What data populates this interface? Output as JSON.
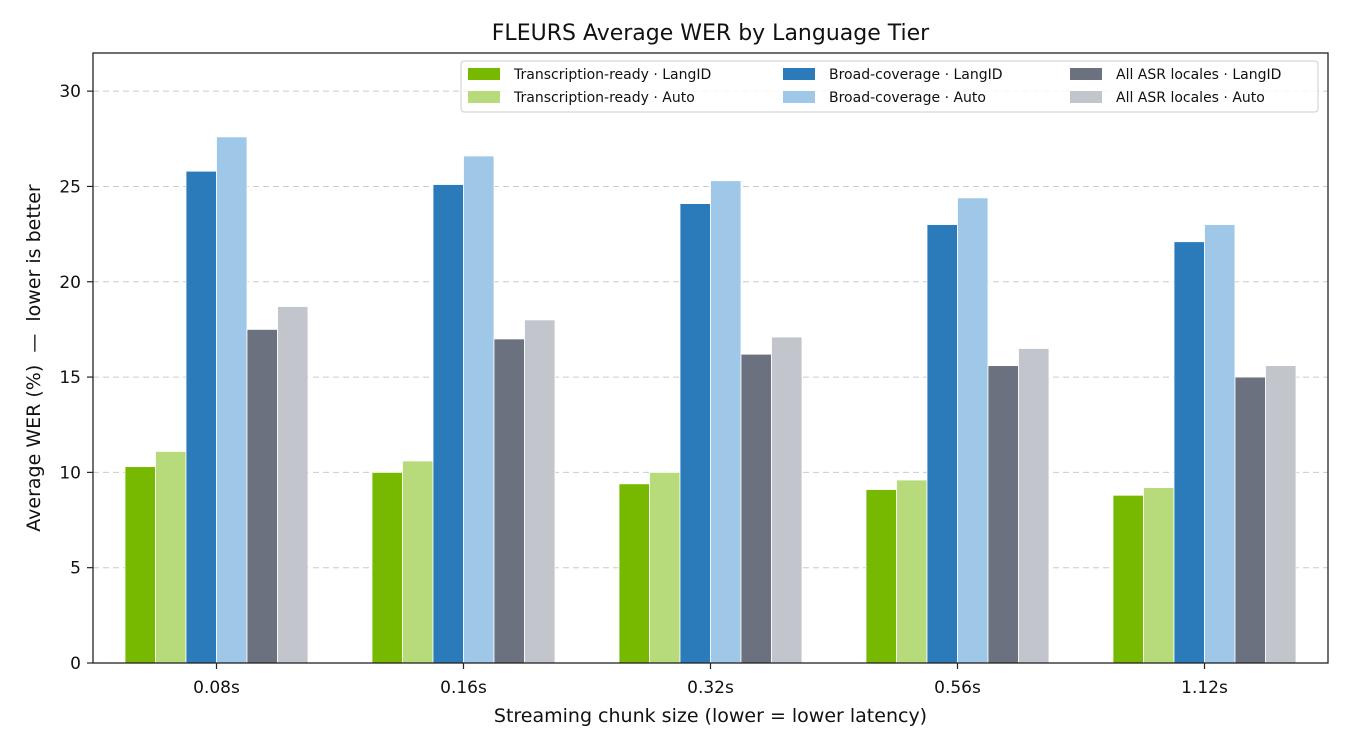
{
  "chart_data": {
    "type": "bar",
    "title": "FLEURS Average WER by Language Tier",
    "xlabel": "Streaming chunk size (lower = lower latency)",
    "ylabel": "Average WER (%)  —  lower is better",
    "categories": [
      "0.08s",
      "0.16s",
      "0.32s",
      "0.56s",
      "1.12s"
    ],
    "ylim": [
      0,
      32
    ],
    "yticks": [
      0,
      5,
      10,
      15,
      20,
      25,
      30
    ],
    "grid": "horizontal-dashed",
    "legend_position": "top-right",
    "series": [
      {
        "name": "Transcription-ready · LangID",
        "color": "#76b900",
        "values": [
          10.3,
          10.0,
          9.4,
          9.1,
          8.8
        ]
      },
      {
        "name": "Transcription-ready · Auto",
        "color": "#b7da7a",
        "values": [
          11.1,
          10.6,
          10.0,
          9.6,
          9.2
        ]
      },
      {
        "name": "Broad-coverage · LangID",
        "color": "#2b7bbb",
        "values": [
          25.8,
          25.1,
          24.1,
          23.0,
          22.1
        ]
      },
      {
        "name": "Broad-coverage · Auto",
        "color": "#9fc7e8",
        "values": [
          27.6,
          26.6,
          25.3,
          24.4,
          23.0
        ]
      },
      {
        "name": "All ASR locales · LangID",
        "color": "#6b717e",
        "values": [
          17.5,
          17.0,
          16.2,
          15.6,
          15.0
        ]
      },
      {
        "name": "All ASR locales · Auto",
        "color": "#c2c5cc",
        "values": [
          18.7,
          18.0,
          17.1,
          16.5,
          15.6
        ]
      }
    ]
  }
}
